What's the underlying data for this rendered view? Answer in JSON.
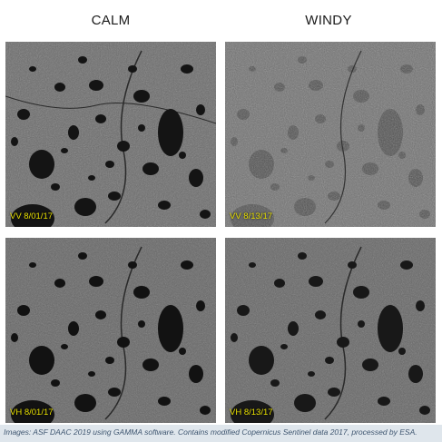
{
  "columns": {
    "calm": "CALM",
    "windy": "WINDY"
  },
  "panels": {
    "top_left": {
      "label": "VV 8/01/17"
    },
    "top_right": {
      "label": "VV 8/13/17"
    },
    "bottom_left": {
      "label": "VH 8/01/17"
    },
    "bottom_right": {
      "label": "VH 8/13/17"
    }
  },
  "caption": "Images: ASF DAAC 2019 using GAMMA software. Contains modified Copernicus Sentinel data 2017, processed by ESA.",
  "colors": {
    "label": "#e8e000",
    "water": "#141414",
    "land": "#6a6a6a",
    "windy_water": "#4a4a4a"
  }
}
